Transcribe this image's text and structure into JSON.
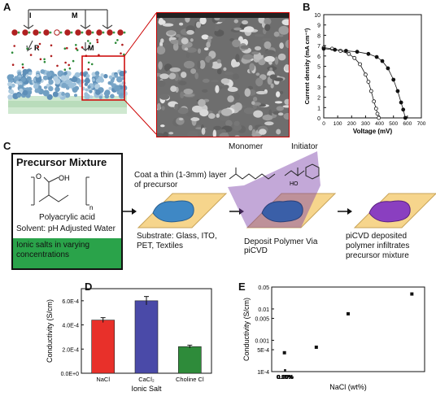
{
  "panels": {
    "a": "A",
    "b": "B",
    "c": "C",
    "d": "D",
    "e": "E"
  },
  "panel_a": {
    "arrow_I": "I",
    "arrow_M": "M",
    "label_R": "R",
    "label_M2": "M"
  },
  "panel_c": {
    "box_title": "Precursor Mixture",
    "polymer_name": "Polyacrylic acid",
    "solvent": "Solvent: pH Adjusted Water",
    "salts": "Ionic salts in varying concentrations",
    "coat_text": "Coat a thin (1-3mm) layer of precursor",
    "substrate_text": "Substrate: Glass, ITO, PET, Textiles",
    "monomer": "Monomer",
    "initiator": "Initiator",
    "deposit_text": "Deposit Polymer Via piCVD",
    "final_text": "piCVD deposited polymer infiltrates precursor mixture",
    "chem_oh": "OH",
    "chem_o": "O",
    "chem_n": "n",
    "chem_ho": "HO"
  },
  "colors": {
    "red_bar": "#e8302a",
    "blue_bar": "#4a4aa8",
    "green_bar": "#2e8b3a",
    "green_box": "#2aa34a",
    "frame_red": "#cc0000",
    "purple": "#7a3fa8"
  },
  "chart_data": [
    {
      "panel": "B",
      "type": "scatter",
      "xlabel": "Voltage (mV)",
      "ylabel": "Current density (mA cm⁻²)",
      "xlim": [
        0,
        700
      ],
      "ylim": [
        0,
        10
      ],
      "xticks": [
        "0",
        "100",
        "200",
        "300",
        "400",
        "500",
        "600",
        "700"
      ],
      "yticks": [
        "0",
        "1",
        "2",
        "3",
        "4",
        "5",
        "6",
        "7",
        "8",
        "9",
        "10"
      ],
      "series": [
        {
          "marker": "open-circle",
          "x": [
            0,
            60,
            120,
            180,
            220,
            260,
            300,
            320,
            340,
            360,
            375,
            385,
            395
          ],
          "y": [
            6.8,
            6.7,
            6.5,
            6.2,
            5.8,
            5.2,
            4.2,
            3.5,
            2.6,
            1.6,
            0.9,
            0.4,
            0.0
          ]
        },
        {
          "marker": "filled-circle",
          "x": [
            0,
            80,
            160,
            240,
            320,
            380,
            420,
            460,
            500,
            530,
            555,
            570,
            585
          ],
          "y": [
            6.7,
            6.6,
            6.5,
            6.4,
            6.2,
            5.9,
            5.5,
            4.8,
            3.7,
            2.6,
            1.5,
            0.8,
            0.0
          ]
        }
      ]
    },
    {
      "panel": "D",
      "type": "bar",
      "xlabel": "Ionic Salt",
      "ylabel": "Conductivity (S/cm)",
      "categories": [
        "NaCl",
        "CaCl₂",
        "Choline Cl"
      ],
      "values": [
        0.00044,
        0.0006,
        0.00022
      ],
      "errors": [
        2e-05,
        3.5e-05,
        1.2e-05
      ],
      "ylim": [
        0,
        0.0007
      ],
      "yticks": [
        "0.0E+0",
        "2.0E-4",
        "4.0E-4",
        "6.0E-4"
      ]
    },
    {
      "panel": "E",
      "type": "scatter",
      "xlabel": "NaCl (wt%)",
      "ylabel": "Conductivity (S/cm)",
      "yscale": "log",
      "xlim": [
        -0.1,
        1.1
      ],
      "ylim": [
        0.0001,
        0.05
      ],
      "xticks": [
        "0.00%",
        "0.25%",
        "0.50%",
        "0.75%",
        "1.00%"
      ],
      "yticks": [
        "1E-4",
        "5E-4",
        "0.001",
        "0.005",
        "0.01",
        "0.05"
      ],
      "x": [
        0.0,
        0.25,
        0.5,
        1.0
      ],
      "y": [
        0.0004,
        0.0006,
        0.007,
        0.03
      ]
    }
  ]
}
